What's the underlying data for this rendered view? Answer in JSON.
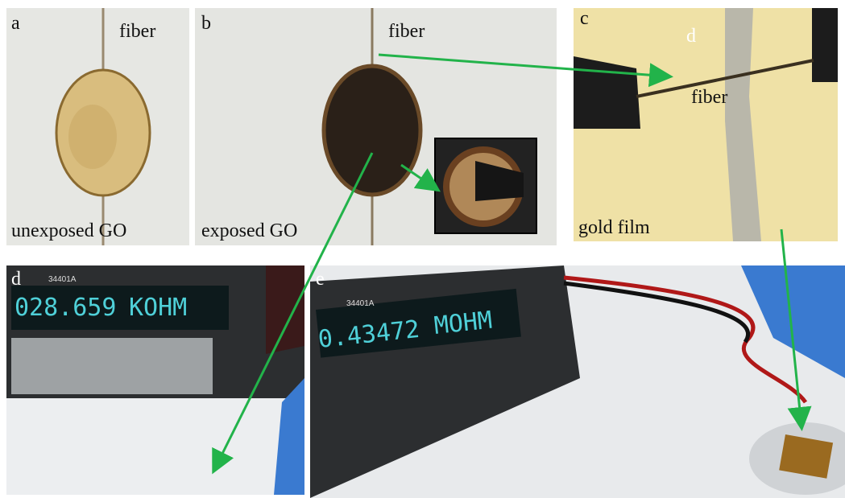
{
  "panels": [
    {
      "label": "a",
      "texts": [
        "fiber",
        "unexposed GO"
      ]
    },
    {
      "label": "b",
      "texts": [
        "fiber",
        "exposed GO"
      ]
    },
    {
      "label": "c",
      "texts": [
        "d",
        "fiber",
        "gold film"
      ]
    },
    {
      "label": "d",
      "display": [
        "028.659",
        "KOHM"
      ],
      "model": "34401A"
    },
    {
      "label": "e",
      "display": [
        "0.43472",
        "MOHM"
      ],
      "model": "34401A"
    }
  ]
}
